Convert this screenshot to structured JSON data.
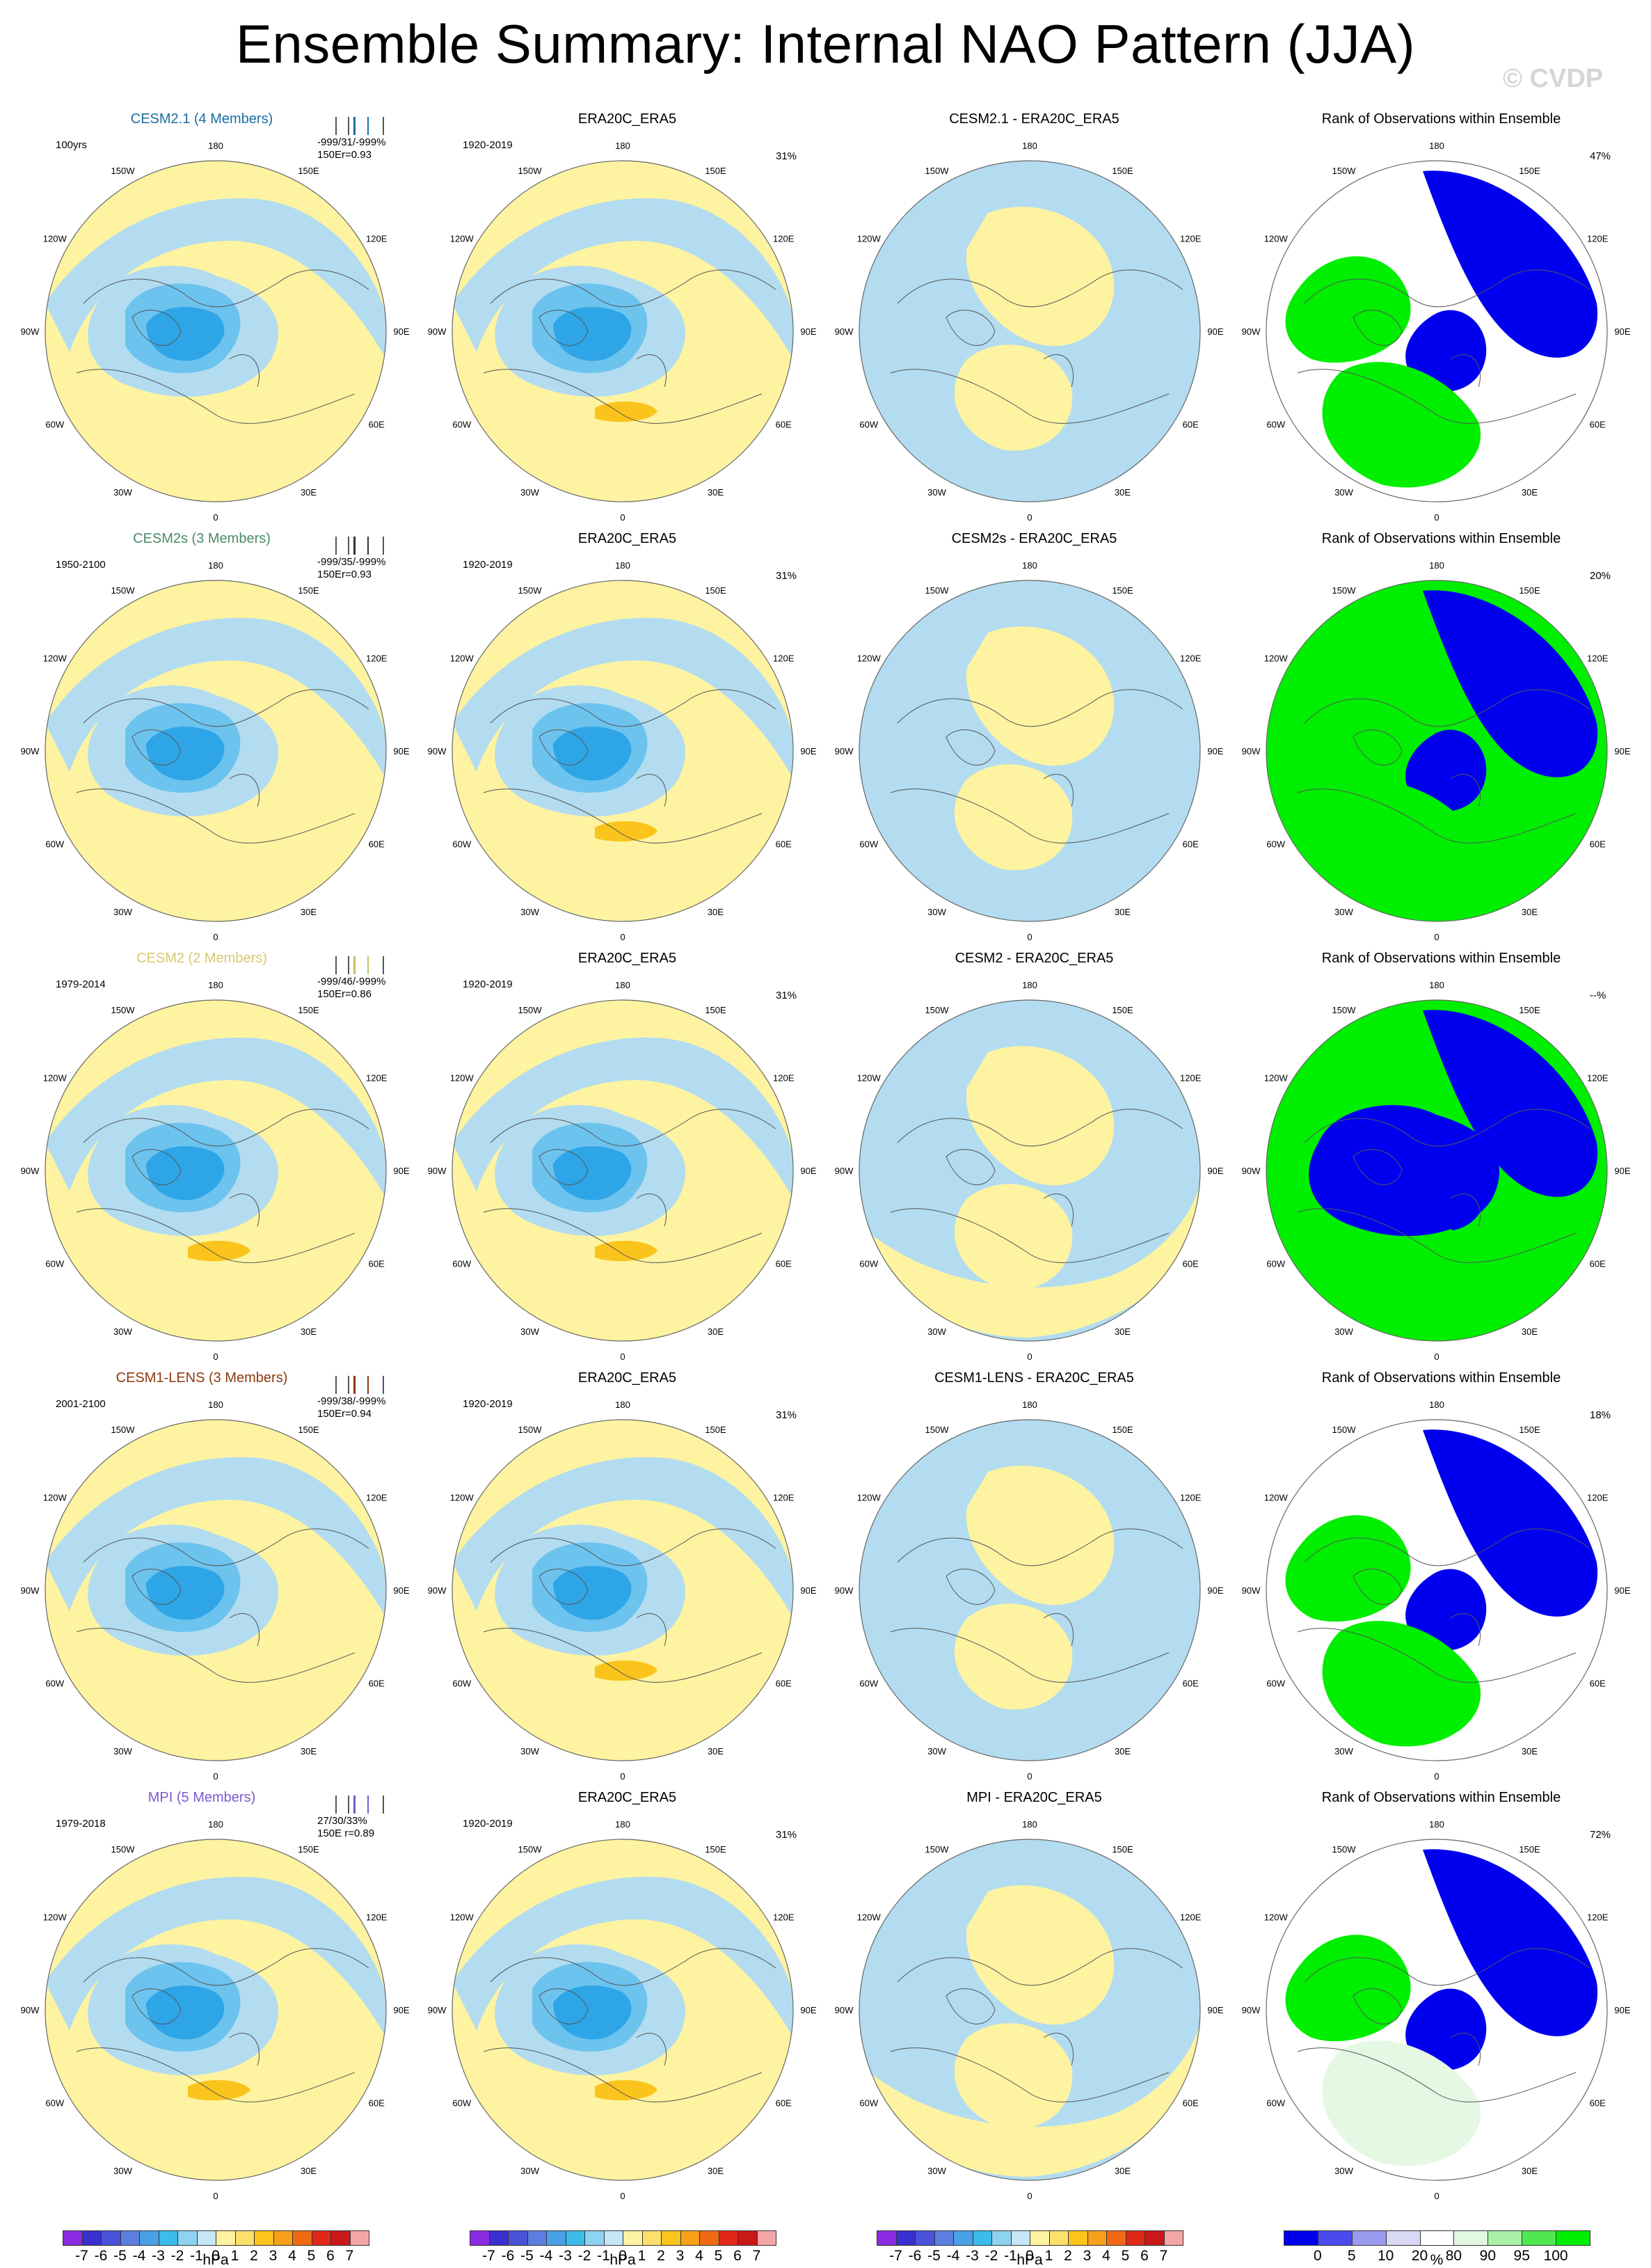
{
  "title": "Ensemble Summary: Internal NAO Pattern (JJA)",
  "watermark": "© CVDP",
  "longitude_labels": [
    "180",
    "150E",
    "120E",
    "90E",
    "60E",
    "30E",
    "0",
    "30W",
    "60W",
    "90W",
    "120W",
    "150W"
  ],
  "colors": {
    "light_blue": "#b3dcf0",
    "mid_blue": "#6cc3ee",
    "deep_blue": "#2ea5e6",
    "light_yellow": "#fdf3a1",
    "orange": "#fbc41c",
    "rank_blue": "#0000ee",
    "rank_green": "#00ee00",
    "rank_pale": "#e4f8e4"
  },
  "rows": [
    {
      "model": {
        "title": "CESM2.1 (4 Members)",
        "title_color": "#1a6ea0",
        "period": "100yrs",
        "stat": "-999/31/-999%",
        "corr": "150Er=0.93",
        "tick_color": "#1a6ea0"
      },
      "obs": {
        "title": "ERA20C_ERA5",
        "period": "1920-2019",
        "pct": "31%"
      },
      "diff": {
        "title": "CESM2.1 - ERA20C_ERA5"
      },
      "rank": {
        "title": "Rank of Observations within Ensemble",
        "pct": "47%"
      }
    },
    {
      "model": {
        "title": "CESM2s (3 Members)",
        "title_color": "#4c8a6a",
        "period": "1950-2100",
        "stat": "-999/35/-999%",
        "corr": "150Er=0.93",
        "tick_color": "#333333"
      },
      "obs": {
        "title": "ERA20C_ERA5",
        "period": "1920-2019",
        "pct": "31%"
      },
      "diff": {
        "title": "CESM2s - ERA20C_ERA5"
      },
      "rank": {
        "title": "Rank of Observations within Ensemble",
        "pct": "20%"
      }
    },
    {
      "model": {
        "title": "CESM2 (2 Members)",
        "title_color": "#d8c870",
        "period": "1979-2014",
        "stat": "-999/46/-999%",
        "corr": "150Er=0.86",
        "tick_color": "#c8c060"
      },
      "obs": {
        "title": "ERA20C_ERA5",
        "period": "1920-2019",
        "pct": "31%"
      },
      "diff": {
        "title": "CESM2 - ERA20C_ERA5"
      },
      "rank": {
        "title": "Rank of Observations within Ensemble",
        "pct": "--%"
      }
    },
    {
      "model": {
        "title": "CESM1-LENS (3 Members)",
        "title_color": "#8a3a10",
        "period": "2001-2100",
        "stat": "-999/38/-999%",
        "corr": "150Er=0.94",
        "tick_color": "#8a3a10"
      },
      "obs": {
        "title": "ERA20C_ERA5",
        "period": "1920-2019",
        "pct": "31%"
      },
      "diff": {
        "title": "CESM1-LENS - ERA20C_ERA5"
      },
      "rank": {
        "title": "Rank of Observations within Ensemble",
        "pct": "18%"
      }
    },
    {
      "model": {
        "title": "MPI (5 Members)",
        "title_color": "#7a5ad0",
        "period": "1979-2018",
        "stat": "27/30/33%",
        "corr": "150E    r=0.89",
        "tick_color": "#7a5ad0"
      },
      "obs": {
        "title": "ERA20C_ERA5",
        "period": "1920-2019",
        "pct": "31%"
      },
      "diff": {
        "title": "MPI - ERA20C_ERA5"
      },
      "rank": {
        "title": "Rank of Observations within Ensemble",
        "pct": "72%"
      }
    }
  ],
  "colorbar_hpa": {
    "unit": "hPa",
    "labels": [
      "-7",
      "-6",
      "-5",
      "-4",
      "-3",
      "-2",
      "-1",
      "0",
      "1",
      "2",
      "3",
      "4",
      "5",
      "6",
      "7"
    ],
    "colors": [
      "#8a2be2",
      "#3a2fd0",
      "#4a52d8",
      "#5c7ee0",
      "#4aa0e6",
      "#3bbcea",
      "#8ed2f2",
      "#c4e6f6",
      "#fdf3a1",
      "#fce06a",
      "#fbc41c",
      "#f7a01a",
      "#f06a14",
      "#e02818",
      "#c81818",
      "#f4a6a6"
    ]
  },
  "colorbar_rank": {
    "unit": "%",
    "labels": [
      "0",
      "5",
      "10",
      "20",
      "80",
      "90",
      "95",
      "100"
    ],
    "colors": [
      "#0000ee",
      "#4a4aee",
      "#9a9af0",
      "#d8d8f4",
      "#ffffff",
      "#e0f8e0",
      "#a8f0a8",
      "#50e850",
      "#00ee00"
    ]
  }
}
